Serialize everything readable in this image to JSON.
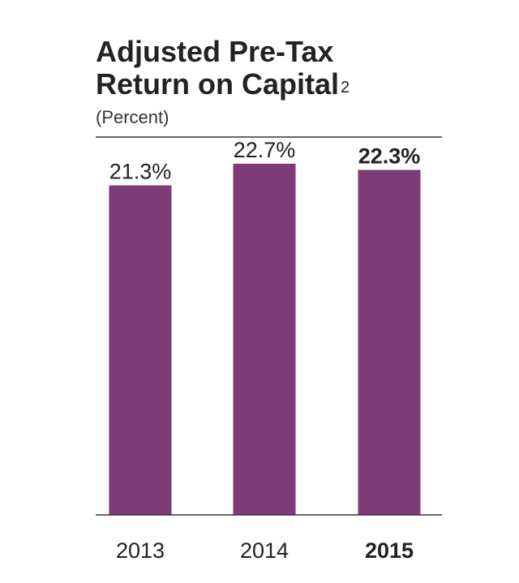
{
  "header": {
    "title_line1": "Adjusted Pre-Tax",
    "title_line2": "Return on Capital",
    "title_superscript": "2",
    "subtitle": "(Percent)"
  },
  "colors": {
    "bar": "#7f3a78",
    "rule": "#333333",
    "text": "#222222"
  },
  "chart_data": {
    "type": "bar",
    "title": "Adjusted Pre-Tax Return on Capital",
    "subtitle": "(Percent)",
    "categories": [
      "2013",
      "2014",
      "2015"
    ],
    "values": [
      21.3,
      22.7,
      22.3
    ],
    "value_labels": [
      "21.3%",
      "22.7%",
      "22.3%"
    ],
    "highlight_category": "2015",
    "ylim": [
      0,
      23.9
    ],
    "xlabel": "",
    "ylabel": "",
    "grid": false,
    "legend": "none"
  }
}
